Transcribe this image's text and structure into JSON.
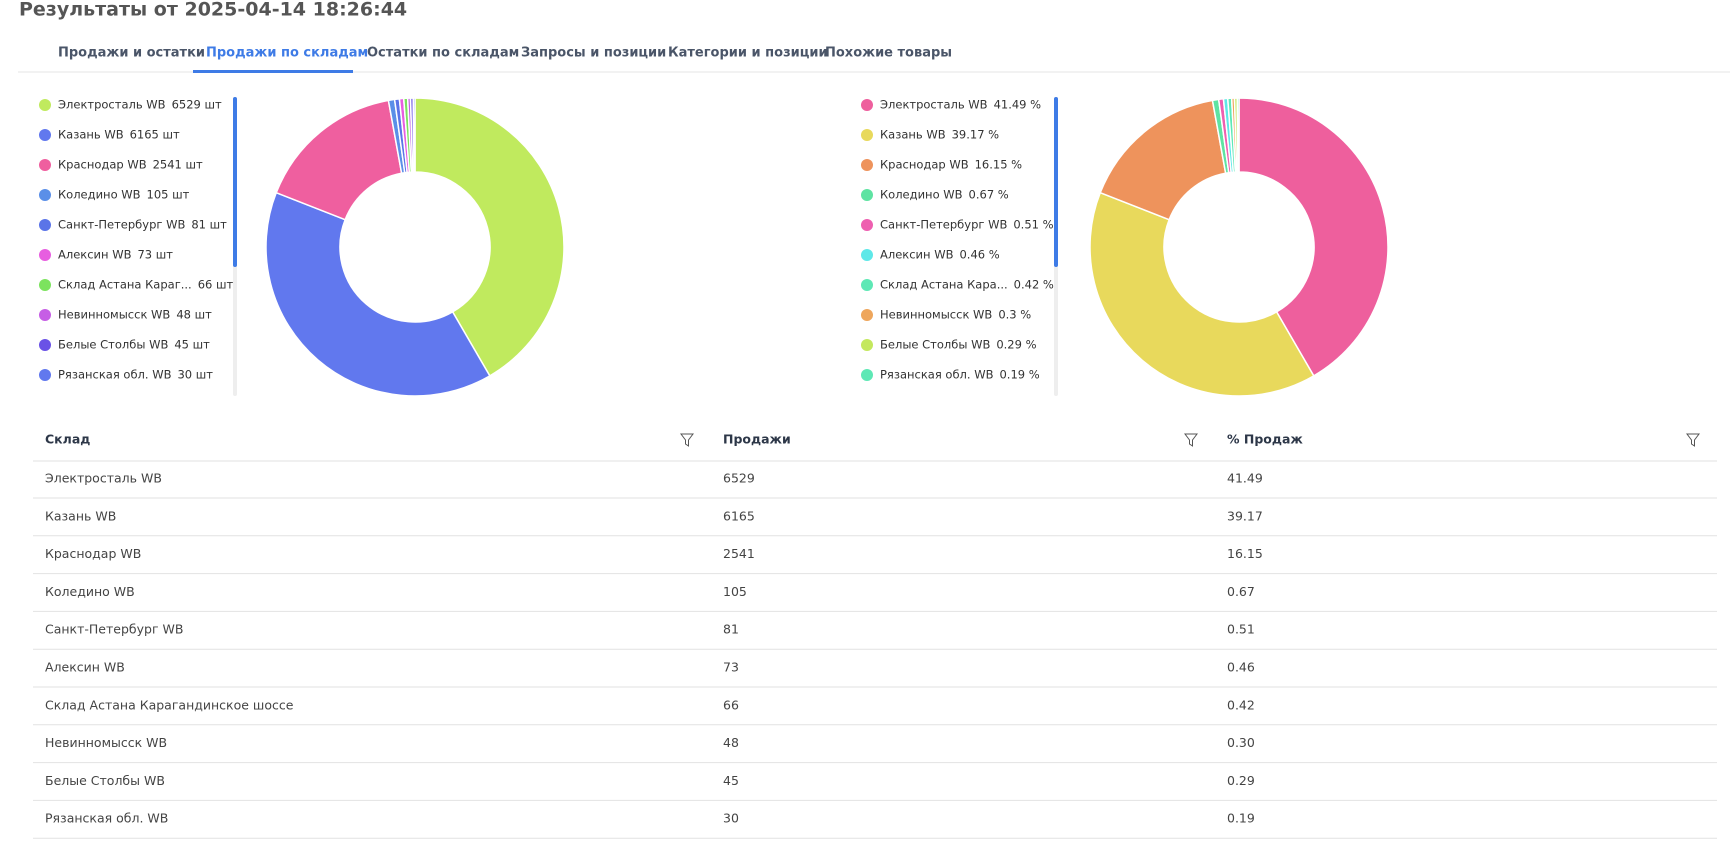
{
  "header": {
    "title": "Результаты от 2025-04-14 18:26:44"
  },
  "tabs": [
    "Продажи и остатки",
    "Продажи по складам",
    "Остатки по складам",
    "Запросы и позиции",
    "Категории и позиции",
    "Похожие товары"
  ],
  "chart_data": [
    {
      "type": "pie",
      "categories": [
        "Электросталь WB",
        "Казань WB",
        "Краснодар WB",
        "Коледино WB",
        "Санкт-Петербург WB",
        "Алексин WB",
        "Склад Астана Караг...",
        "Невинномысск WB",
        "Белые Столбы WB",
        "Рязанская обл. WB"
      ],
      "values": [
        6529,
        6165,
        2541,
        105,
        81,
        73,
        66,
        48,
        45,
        30
      ],
      "value_labels": [
        "6529 шт",
        "6165 шт",
        "2541 шт",
        "105 шт",
        "81 шт",
        "73 шт",
        "66 шт",
        "48 шт",
        "45 шт",
        "30 шт"
      ],
      "colors": [
        "#c0ea5e",
        "#6178ee",
        "#ef5f9f",
        "#5b8fe8",
        "#5b74e8",
        "#e75ee0",
        "#7ce35e",
        "#c65ee5",
        "#6a52e6",
        "#6178ee"
      ]
    },
    {
      "type": "pie",
      "categories": [
        "Электросталь WB",
        "Казань WB",
        "Краснодар WB",
        "Коледино WB",
        "Санкт-Петербург WB",
        "Алексин WB",
        "Склад Астана Кара...",
        "Невинномысск WB",
        "Белые Столбы WB",
        "Рязанская обл. WB"
      ],
      "values": [
        41.49,
        39.17,
        16.15,
        0.67,
        0.51,
        0.46,
        0.42,
        0.3,
        0.29,
        0.19
      ],
      "value_labels": [
        "41.49 %",
        "39.17 %",
        "16.15 %",
        "0.67 %",
        "0.51 %",
        "0.46 %",
        "0.42 %",
        "0.3 %",
        "0.29 %",
        "0.19 %"
      ],
      "colors": [
        "#ee5f9d",
        "#e8d95c",
        "#ee935c",
        "#5ee3a2",
        "#ee5fb0",
        "#5ee8e8",
        "#5ee8b5",
        "#eea65c",
        "#c4e85e",
        "#5ee8b5"
      ]
    }
  ],
  "table": {
    "columns": [
      "Склад",
      "Продажи",
      "% Продаж"
    ],
    "rows": [
      [
        "Электросталь WB",
        "6529",
        "41.49"
      ],
      [
        "Казань WB",
        "6165",
        "39.17"
      ],
      [
        "Краснодар WB",
        "2541",
        "16.15"
      ],
      [
        "Коледино WB",
        "105",
        "0.67"
      ],
      [
        "Санкт-Петербург WB",
        "81",
        "0.51"
      ],
      [
        "Алексин WB",
        "73",
        "0.46"
      ],
      [
        "Склад Астана Карагандинское шоссе",
        "66",
        "0.42"
      ],
      [
        "Невинномысск WB",
        "48",
        "0.30"
      ],
      [
        "Белые Столбы WB",
        "45",
        "0.29"
      ],
      [
        "Рязанская обл. WB",
        "30",
        "0.19"
      ]
    ]
  }
}
